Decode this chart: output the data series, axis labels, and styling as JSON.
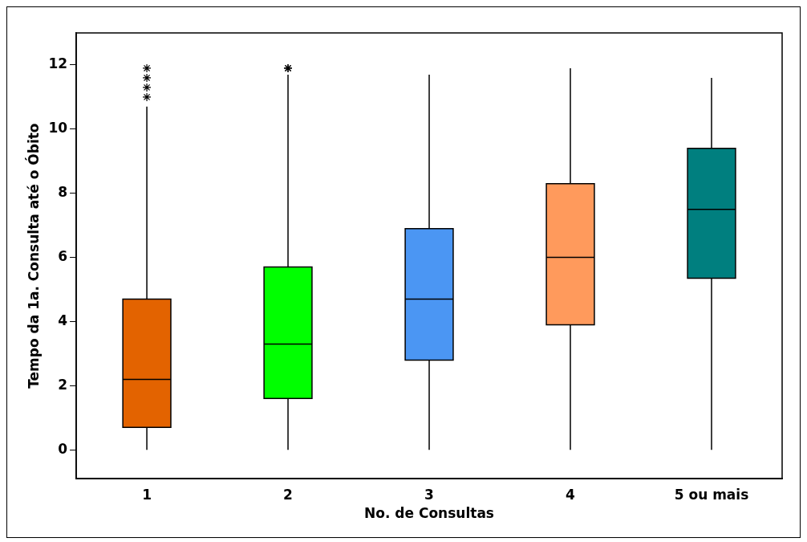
{
  "chart_data": {
    "type": "box",
    "xlabel": "No. de Consultas",
    "ylabel": "Tempo da 1a. Consulta até o Óbito",
    "categories": [
      "1",
      "2",
      "3",
      "4",
      "5 ou mais"
    ],
    "colors": [
      "#e36300",
      "#00ff00",
      "#4b96f3",
      "#ff9a5c",
      "#007f7f"
    ],
    "boxes": [
      {
        "low": 0,
        "q1": 0.7,
        "median": 2.2,
        "q3": 4.7,
        "high": 10.7,
        "outliers": [
          11.0,
          11.3,
          11.6,
          11.9
        ]
      },
      {
        "low": 0,
        "q1": 1.6,
        "median": 3.3,
        "q3": 5.7,
        "high": 11.7,
        "outliers": [
          11.9,
          11.9
        ]
      },
      {
        "low": 0,
        "q1": 2.8,
        "median": 4.7,
        "q3": 6.9,
        "high": 11.7
      },
      {
        "low": 0,
        "q1": 3.9,
        "median": 6.0,
        "q3": 8.3,
        "high": 11.9
      },
      {
        "low": 0,
        "q1": 5.35,
        "median": 7.5,
        "q3": 9.4,
        "high": 11.6
      }
    ],
    "marker": "star",
    "ylim": [
      -0.9,
      13
    ],
    "yticks": [
      0,
      2,
      4,
      6,
      8,
      10,
      12
    ],
    "grid": false,
    "legend": false
  }
}
